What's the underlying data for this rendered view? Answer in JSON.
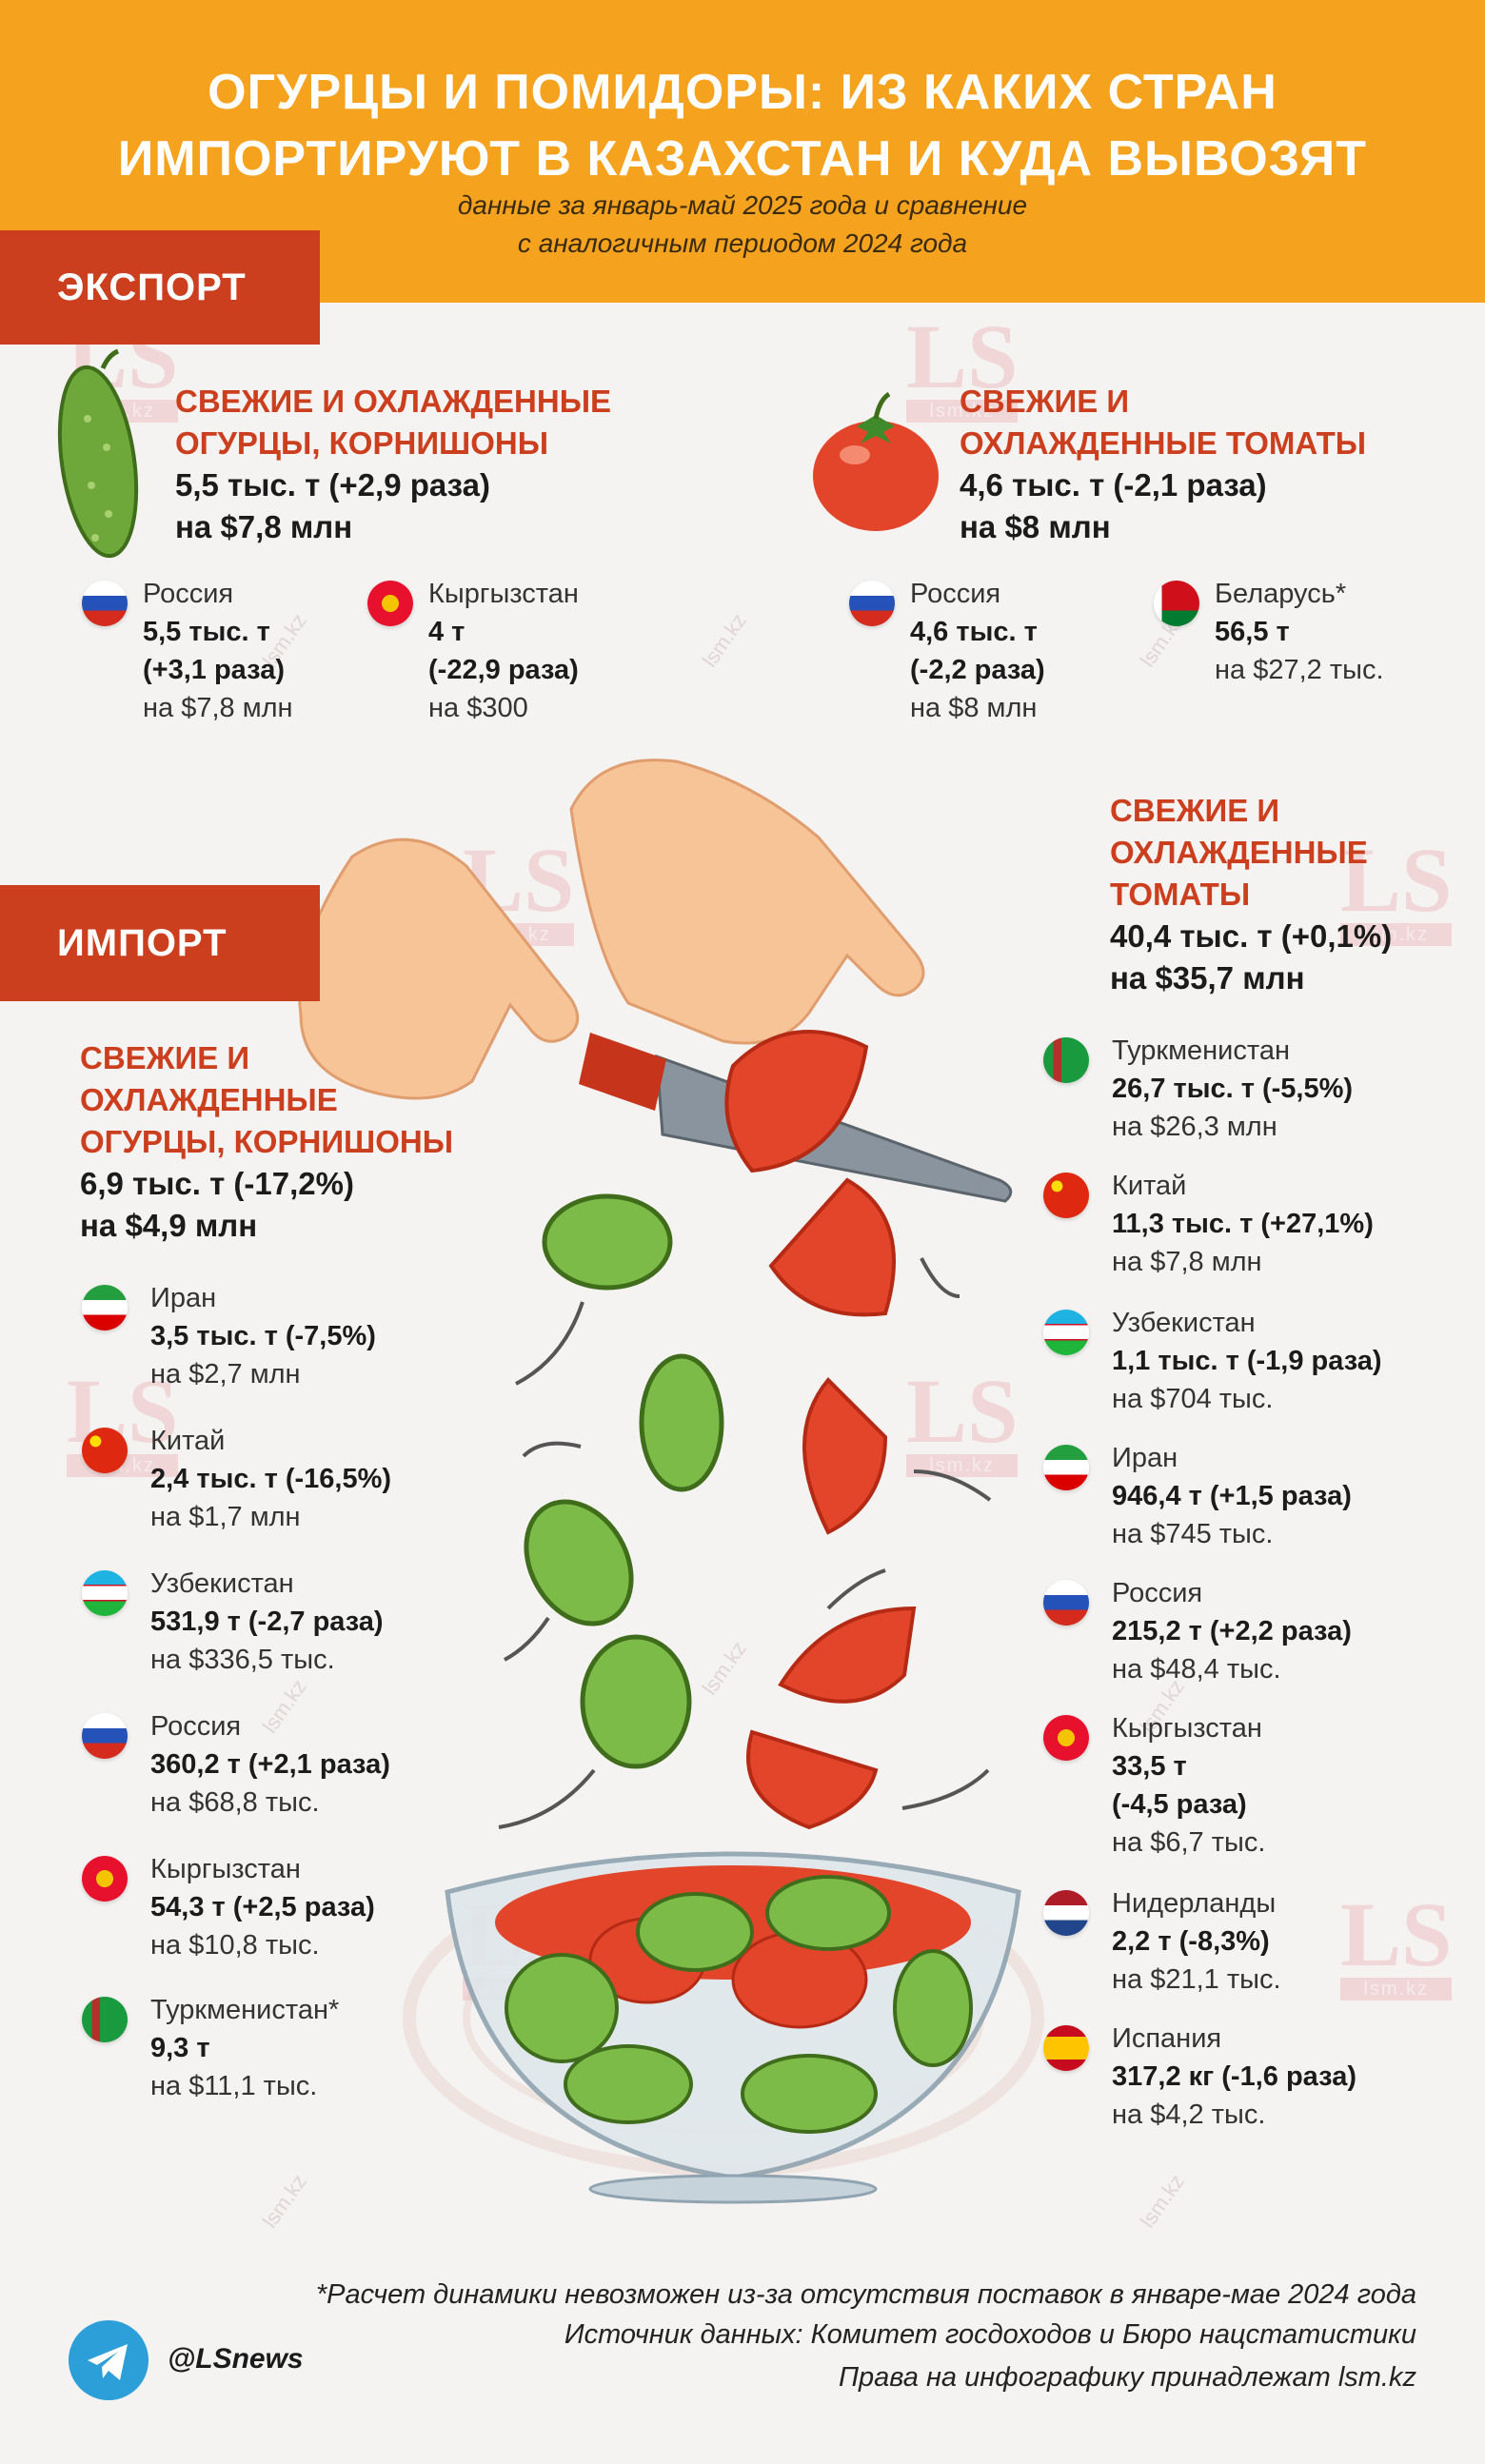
{
  "header": {
    "title_line1": "ОГУРЦЫ И ПОМИДОРЫ: ИЗ КАКИХ СТРАН",
    "title_line2": "ИМПОРТИРУЮТ В КАЗАХСТАН И КУДА ВЫВОЗЯТ",
    "subtitle_line1": "данные за январь-май 2025 года и сравнение",
    "subtitle_line2": "с аналогичным периодом 2024 года",
    "bg_color": "#f5a31f"
  },
  "export": {
    "label": "ЭКСПОРТ",
    "cucumbers": {
      "title_line1": "СВЕЖИЕ И ОХЛАЖДЕННЫЕ",
      "title_line2": "ОГУРЦЫ, КОРНИШОНЫ",
      "volume": "5,5 тыс. т (+2,9 раза)",
      "value": "на $7,8 млн",
      "countries": [
        {
          "name": "Россия",
          "l2": "5,5 тыс. т",
          "l3": "(+3,1 раза)",
          "l4": "на $7,8 млн",
          "flag": "russia"
        },
        {
          "name": "Кыргызстан",
          "l2": "4 т",
          "l3": "(-22,9 раза)",
          "l4": "на $300",
          "flag": "kyrgyzstan"
        }
      ]
    },
    "tomatoes": {
      "title_line1": "СВЕЖИЕ И",
      "title_line2": "ОХЛАЖДЕННЫЕ ТОМАТЫ",
      "volume": "4,6 тыс. т (-2,1 раза)",
      "value": "на $8 млн",
      "countries": [
        {
          "name": "Россия",
          "l2": "4,6 тыс. т",
          "l3": "(-2,2 раза)",
          "l4": "на $8 млн",
          "flag": "russia"
        },
        {
          "name": "Беларусь*",
          "l2": "56,5 т",
          "l3": "на $27,2 тыс.",
          "flag": "belarus"
        }
      ]
    }
  },
  "import": {
    "label": "ИМПОРТ",
    "cucumbers": {
      "title_line1": "СВЕЖИЕ И",
      "title_line2": "ОХЛАЖДЕННЫЕ",
      "title_line3": "ОГУРЦЫ, КОРНИШОНЫ",
      "volume": "6,9 тыс. т (-17,2%)",
      "value": "на $4,9 млн",
      "countries": [
        {
          "name": "Иран",
          "l2": "3,5 тыс. т (-7,5%)",
          "l3": "на $2,7 млн",
          "flag": "iran"
        },
        {
          "name": "Китай",
          "l2": "2,4 тыс. т (-16,5%)",
          "l3": "на $1,7 млн",
          "flag": "china"
        },
        {
          "name": "Узбекистан",
          "l2": "531,9 т (-2,7 раза)",
          "l3": "на $336,5 тыс.",
          "flag": "uzbekistan"
        },
        {
          "name": "Россия",
          "l2": "360,2 т (+2,1 раза)",
          "l3": "на $68,8 тыс.",
          "flag": "russia"
        },
        {
          "name": "Кыргызстан",
          "l2": "54,3 т (+2,5 раза)",
          "l3": "на $10,8 тыс.",
          "flag": "kyrgyzstan"
        },
        {
          "name": "Туркменистан*",
          "l2": "9,3 т",
          "l3": "на $11,1 тыс.",
          "flag": "turkmenistan"
        }
      ]
    },
    "tomatoes": {
      "title_line1": "СВЕЖИЕ И",
      "title_line2": "ОХЛАЖДЕННЫЕ",
      "title_line3": "ТОМАТЫ",
      "volume": "40,4 тыс. т (+0,1%)",
      "value": "на $35,7 млн",
      "countries": [
        {
          "name": "Туркменистан",
          "l2": "26,7 тыс. т (-5,5%)",
          "l3": "на $26,3 млн",
          "flag": "turkmenistan"
        },
        {
          "name": "Китай",
          "l2": "11,3 тыс. т (+27,1%)",
          "l3": "на $7,8 млн",
          "flag": "china"
        },
        {
          "name": "Узбекистан",
          "l2": "1,1 тыс. т (-1,9 раза)",
          "l3": "на $704 тыс.",
          "flag": "uzbekistan"
        },
        {
          "name": "Иран",
          "l2": "946,4 т (+1,5 раза)",
          "l3": "на $745 тыс.",
          "flag": "iran"
        },
        {
          "name": "Россия",
          "l2": "215,2 т (+2,2 раза)",
          "l3": "на $48,4 тыс.",
          "flag": "russia"
        },
        {
          "name": "Кыргызстан",
          "l2": "33,5 т",
          "l3": "(-4,5 раза)",
          "l4": "на $6,7 тыс.",
          "flag": "kyrgyzstan"
        },
        {
          "name": "Нидерланды",
          "l2": "2,2 т (-8,3%)",
          "l3": "на $21,1 тыс.",
          "flag": "netherlands"
        },
        {
          "name": "Испания",
          "l2": "317,2 кг (-1,6 раза)",
          "l3": "на $4,2 тыс.",
          "flag": "spain"
        }
      ]
    }
  },
  "footer": {
    "note1": "*Расчет динамики невозможен из-за отсутствия поставок в январе-мае 2024 года",
    "note2": "Источник данных: Комитет госдоходов и Бюро нацстатистики",
    "note3": "Права на инфографику принадлежат lsm.kz",
    "handle": "@LSnews"
  },
  "watermark": {
    "big": "LS",
    "small": "lsm.kz",
    "diag": "lsm.kz"
  },
  "colors": {
    "accent": "#cc3f1e",
    "header": "#f5a31f",
    "telegram": "#2c9fd8"
  }
}
